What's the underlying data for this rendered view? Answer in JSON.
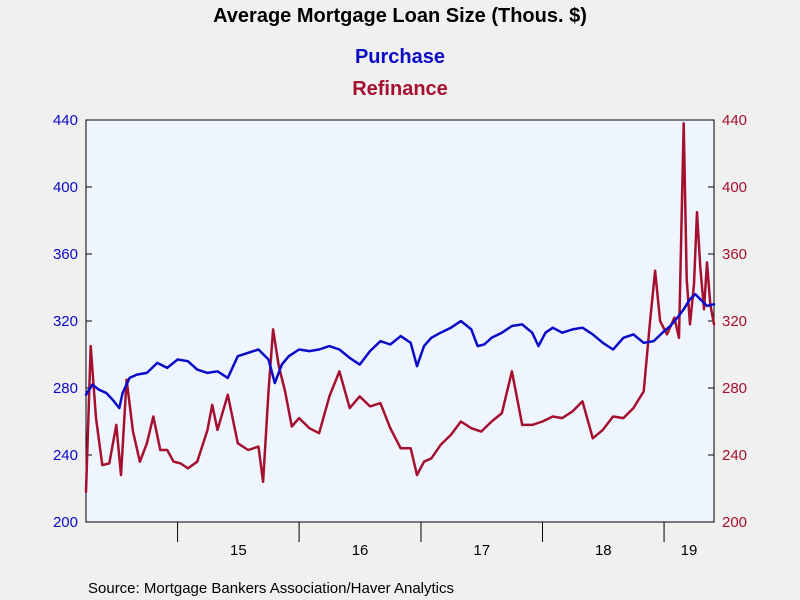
{
  "colors": {
    "purchase": "#0a0ac8",
    "refinance": "#a5102e",
    "plot_bg": "#eef5ff",
    "page_bg": "#f0f0f0"
  },
  "chart_data": {
    "type": "line",
    "title": "Average Mortgage Loan Size (Thous. $)",
    "source": "Source:  Mortgage Bankers Association/Haver Analytics",
    "x_tick_labels": [
      "15",
      "16",
      "17",
      "18",
      "19"
    ],
    "x_axis": {
      "type": "date",
      "range": [
        "2014-04-01",
        "2019-05-31"
      ]
    },
    "y_left": {
      "range": [
        200,
        440
      ],
      "ticks": [
        "200",
        "240",
        "280",
        "320",
        "360",
        "400",
        "440"
      ],
      "color": "purchase"
    },
    "y_right": {
      "range": [
        200,
        440
      ],
      "ticks": [
        "200",
        "240",
        "280",
        "320",
        "360",
        "400",
        "440"
      ],
      "color": "refinance"
    },
    "grid": false,
    "legend_placement": "top-center",
    "series": [
      {
        "name": "Purchase",
        "axis": "left",
        "points": [
          [
            "2014-04-01",
            276
          ],
          [
            "2014-04-20",
            282
          ],
          [
            "2014-05-10",
            279
          ],
          [
            "2014-06-01",
            277
          ],
          [
            "2014-06-20",
            273
          ],
          [
            "2014-07-10",
            268
          ],
          [
            "2014-07-20",
            277
          ],
          [
            "2014-08-10",
            286
          ],
          [
            "2014-09-01",
            288
          ],
          [
            "2014-10-01",
            289
          ],
          [
            "2014-11-01",
            295
          ],
          [
            "2014-12-01",
            292
          ],
          [
            "2015-01-01",
            297
          ],
          [
            "2015-02-01",
            296
          ],
          [
            "2015-03-01",
            291
          ],
          [
            "2015-04-01",
            289
          ],
          [
            "2015-05-01",
            290
          ],
          [
            "2015-06-01",
            286
          ],
          [
            "2015-07-01",
            299
          ],
          [
            "2015-08-01",
            301
          ],
          [
            "2015-09-01",
            303
          ],
          [
            "2015-10-01",
            297
          ],
          [
            "2015-10-20",
            283
          ],
          [
            "2015-11-10",
            294
          ],
          [
            "2015-12-01",
            299
          ],
          [
            "2016-01-01",
            303
          ],
          [
            "2016-02-01",
            302
          ],
          [
            "2016-03-01",
            303
          ],
          [
            "2016-04-01",
            305
          ],
          [
            "2016-05-01",
            303
          ],
          [
            "2016-06-01",
            298
          ],
          [
            "2016-07-01",
            294
          ],
          [
            "2016-08-01",
            302
          ],
          [
            "2016-09-01",
            308
          ],
          [
            "2016-10-01",
            306
          ],
          [
            "2016-11-01",
            311
          ],
          [
            "2016-12-01",
            307
          ],
          [
            "2016-12-20",
            293
          ],
          [
            "2017-01-10",
            305
          ],
          [
            "2017-02-01",
            310
          ],
          [
            "2017-03-01",
            313
          ],
          [
            "2017-04-01",
            316
          ],
          [
            "2017-05-01",
            320
          ],
          [
            "2017-06-01",
            315
          ],
          [
            "2017-06-20",
            305
          ],
          [
            "2017-07-10",
            306
          ],
          [
            "2017-08-01",
            310
          ],
          [
            "2017-09-01",
            313
          ],
          [
            "2017-10-01",
            317
          ],
          [
            "2017-11-01",
            318
          ],
          [
            "2017-12-01",
            313
          ],
          [
            "2017-12-20",
            305
          ],
          [
            "2018-01-10",
            313
          ],
          [
            "2018-02-01",
            316
          ],
          [
            "2018-03-01",
            313
          ],
          [
            "2018-04-01",
            315
          ],
          [
            "2018-05-01",
            316
          ],
          [
            "2018-06-01",
            312
          ],
          [
            "2018-07-01",
            307
          ],
          [
            "2018-08-01",
            303
          ],
          [
            "2018-09-01",
            310
          ],
          [
            "2018-10-01",
            312
          ],
          [
            "2018-11-01",
            307
          ],
          [
            "2018-12-01",
            308
          ],
          [
            "2019-01-01",
            314
          ],
          [
            "2019-01-20",
            317
          ],
          [
            "2019-02-10",
            322
          ],
          [
            "2019-03-01",
            327
          ],
          [
            "2019-03-20",
            333
          ],
          [
            "2019-04-05",
            336
          ],
          [
            "2019-04-20",
            333
          ],
          [
            "2019-05-10",
            329
          ],
          [
            "2019-05-31",
            330
          ]
        ]
      },
      {
        "name": "Refinance",
        "axis": "right",
        "points": [
          [
            "2014-04-01",
            218
          ],
          [
            "2014-04-15",
            305
          ],
          [
            "2014-05-01",
            262
          ],
          [
            "2014-05-20",
            234
          ],
          [
            "2014-06-10",
            235
          ],
          [
            "2014-07-01",
            258
          ],
          [
            "2014-07-15",
            228
          ],
          [
            "2014-08-01",
            285
          ],
          [
            "2014-08-20",
            254
          ],
          [
            "2014-09-10",
            236
          ],
          [
            "2014-10-01",
            247
          ],
          [
            "2014-10-20",
            263
          ],
          [
            "2014-11-10",
            243
          ],
          [
            "2014-12-01",
            243
          ],
          [
            "2014-12-20",
            236
          ],
          [
            "2015-01-10",
            235
          ],
          [
            "2015-02-01",
            232
          ],
          [
            "2015-03-01",
            236
          ],
          [
            "2015-04-01",
            255
          ],
          [
            "2015-04-15",
            270
          ],
          [
            "2015-05-01",
            255
          ],
          [
            "2015-06-01",
            276
          ],
          [
            "2015-07-01",
            247
          ],
          [
            "2015-08-01",
            243
          ],
          [
            "2015-09-01",
            245
          ],
          [
            "2015-09-15",
            224
          ],
          [
            "2015-10-01",
            278
          ],
          [
            "2015-10-15",
            315
          ],
          [
            "2015-11-01",
            293
          ],
          [
            "2015-11-20",
            278
          ],
          [
            "2015-12-10",
            257
          ],
          [
            "2016-01-01",
            262
          ],
          [
            "2016-02-01",
            256
          ],
          [
            "2016-03-01",
            253
          ],
          [
            "2016-04-01",
            275
          ],
          [
            "2016-05-01",
            290
          ],
          [
            "2016-06-01",
            268
          ],
          [
            "2016-07-01",
            275
          ],
          [
            "2016-08-01",
            269
          ],
          [
            "2016-09-01",
            271
          ],
          [
            "2016-10-01",
            256
          ],
          [
            "2016-11-01",
            244
          ],
          [
            "2016-12-01",
            244
          ],
          [
            "2016-12-20",
            228
          ],
          [
            "2017-01-10",
            236
          ],
          [
            "2017-02-01",
            238
          ],
          [
            "2017-03-01",
            246
          ],
          [
            "2017-04-01",
            252
          ],
          [
            "2017-05-01",
            260
          ],
          [
            "2017-06-01",
            256
          ],
          [
            "2017-07-01",
            254
          ],
          [
            "2017-08-01",
            260
          ],
          [
            "2017-09-01",
            265
          ],
          [
            "2017-10-01",
            290
          ],
          [
            "2017-11-01",
            258
          ],
          [
            "2017-12-01",
            258
          ],
          [
            "2018-01-01",
            260
          ],
          [
            "2018-02-01",
            263
          ],
          [
            "2018-03-01",
            262
          ],
          [
            "2018-04-01",
            266
          ],
          [
            "2018-05-01",
            272
          ],
          [
            "2018-06-01",
            250
          ],
          [
            "2018-07-01",
            255
          ],
          [
            "2018-08-01",
            263
          ],
          [
            "2018-09-01",
            262
          ],
          [
            "2018-10-01",
            268
          ],
          [
            "2018-11-01",
            278
          ],
          [
            "2018-11-20",
            320
          ],
          [
            "2018-12-05",
            350
          ],
          [
            "2018-12-20",
            320
          ],
          [
            "2019-01-10",
            312
          ],
          [
            "2019-02-01",
            322
          ],
          [
            "2019-02-15",
            310
          ],
          [
            "2019-03-01",
            438
          ],
          [
            "2019-03-10",
            345
          ],
          [
            "2019-03-20",
            318
          ],
          [
            "2019-04-01",
            342
          ],
          [
            "2019-04-10",
            385
          ],
          [
            "2019-04-20",
            352
          ],
          [
            "2019-05-01",
            327
          ],
          [
            "2019-05-10",
            355
          ],
          [
            "2019-05-20",
            330
          ],
          [
            "2019-05-31",
            318
          ]
        ]
      }
    ]
  }
}
